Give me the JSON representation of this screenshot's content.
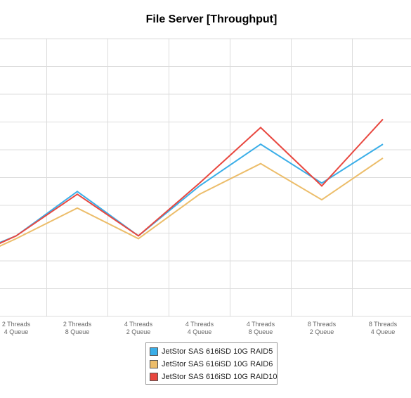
{
  "chart_data": {
    "type": "line",
    "title": "File Server [Throughput]",
    "xlabel": "",
    "ylabel": "",
    "categories": [
      [
        "",
        ""
      ],
      [
        "2 Threads",
        "4 Queue"
      ],
      [
        "2 Threads",
        "8 Queue"
      ],
      [
        "4 Threads",
        "2 Queue"
      ],
      [
        "4 Threads",
        "4 Queue"
      ],
      [
        "4 Threads",
        "8 Queue"
      ],
      [
        "8 Threads",
        "2 Queue"
      ],
      [
        "8 Threads",
        "4 Queue"
      ]
    ],
    "ylim": [
      0,
      10
    ],
    "grid": true,
    "legend_position": "bottom",
    "series": [
      {
        "name": "JetStor SAS 616iSD 10G RAID5",
        "color": "#3aaee8",
        "values": [
          2.0,
          2.9,
          4.5,
          2.9,
          4.7,
          6.2,
          4.8,
          6.2
        ]
      },
      {
        "name": "JetStor SAS 616iSD 10G RAID6",
        "color": "#ecbd6a",
        "values": [
          1.8,
          2.8,
          3.9,
          2.8,
          4.4,
          5.5,
          4.2,
          5.7
        ]
      },
      {
        "name": "JetStor SAS 616iSD 10G RAID10",
        "color": "#e8473f",
        "values": [
          1.9,
          2.9,
          4.4,
          2.9,
          4.8,
          6.8,
          4.7,
          7.1
        ]
      }
    ]
  }
}
